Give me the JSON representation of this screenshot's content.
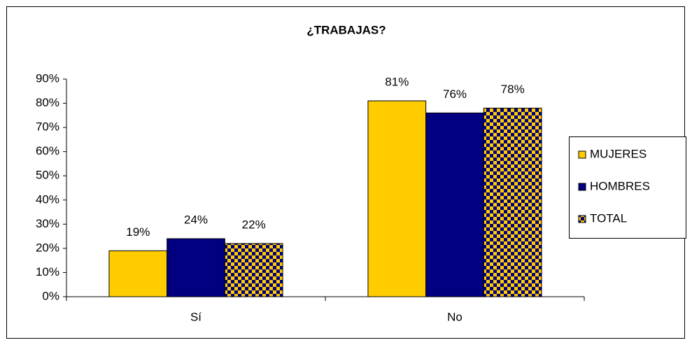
{
  "chart_data": {
    "type": "bar",
    "title": "¿TRABAJAS?",
    "categories": [
      "Sí",
      "No"
    ],
    "series": [
      {
        "name": "MUJERES",
        "color": "#ffcc00",
        "values": [
          19,
          81
        ],
        "value_labels": [
          "19%",
          "81%"
        ]
      },
      {
        "name": "HOMBRES",
        "color": "#000080",
        "values": [
          24,
          76
        ],
        "value_labels": [
          "24%",
          "76%"
        ]
      },
      {
        "name": "TOTAL",
        "color": "#ffcc00",
        "pattern": "checker",
        "pattern_color": "#000080",
        "values": [
          22,
          78
        ],
        "value_labels": [
          "22%",
          "78%"
        ]
      }
    ],
    "ylim": [
      0,
      90
    ],
    "yticks": [
      {
        "value": 0,
        "label": "0%"
      },
      {
        "value": 10,
        "label": "10%"
      },
      {
        "value": 20,
        "label": "20%"
      },
      {
        "value": 30,
        "label": "30%"
      },
      {
        "value": 40,
        "label": "40%"
      },
      {
        "value": 50,
        "label": "50%"
      },
      {
        "value": 60,
        "label": "60%"
      },
      {
        "value": 70,
        "label": "70%"
      },
      {
        "value": 80,
        "label": "80%"
      },
      {
        "value": 90,
        "label": "90%"
      }
    ],
    "grid": false,
    "legend": "right"
  }
}
